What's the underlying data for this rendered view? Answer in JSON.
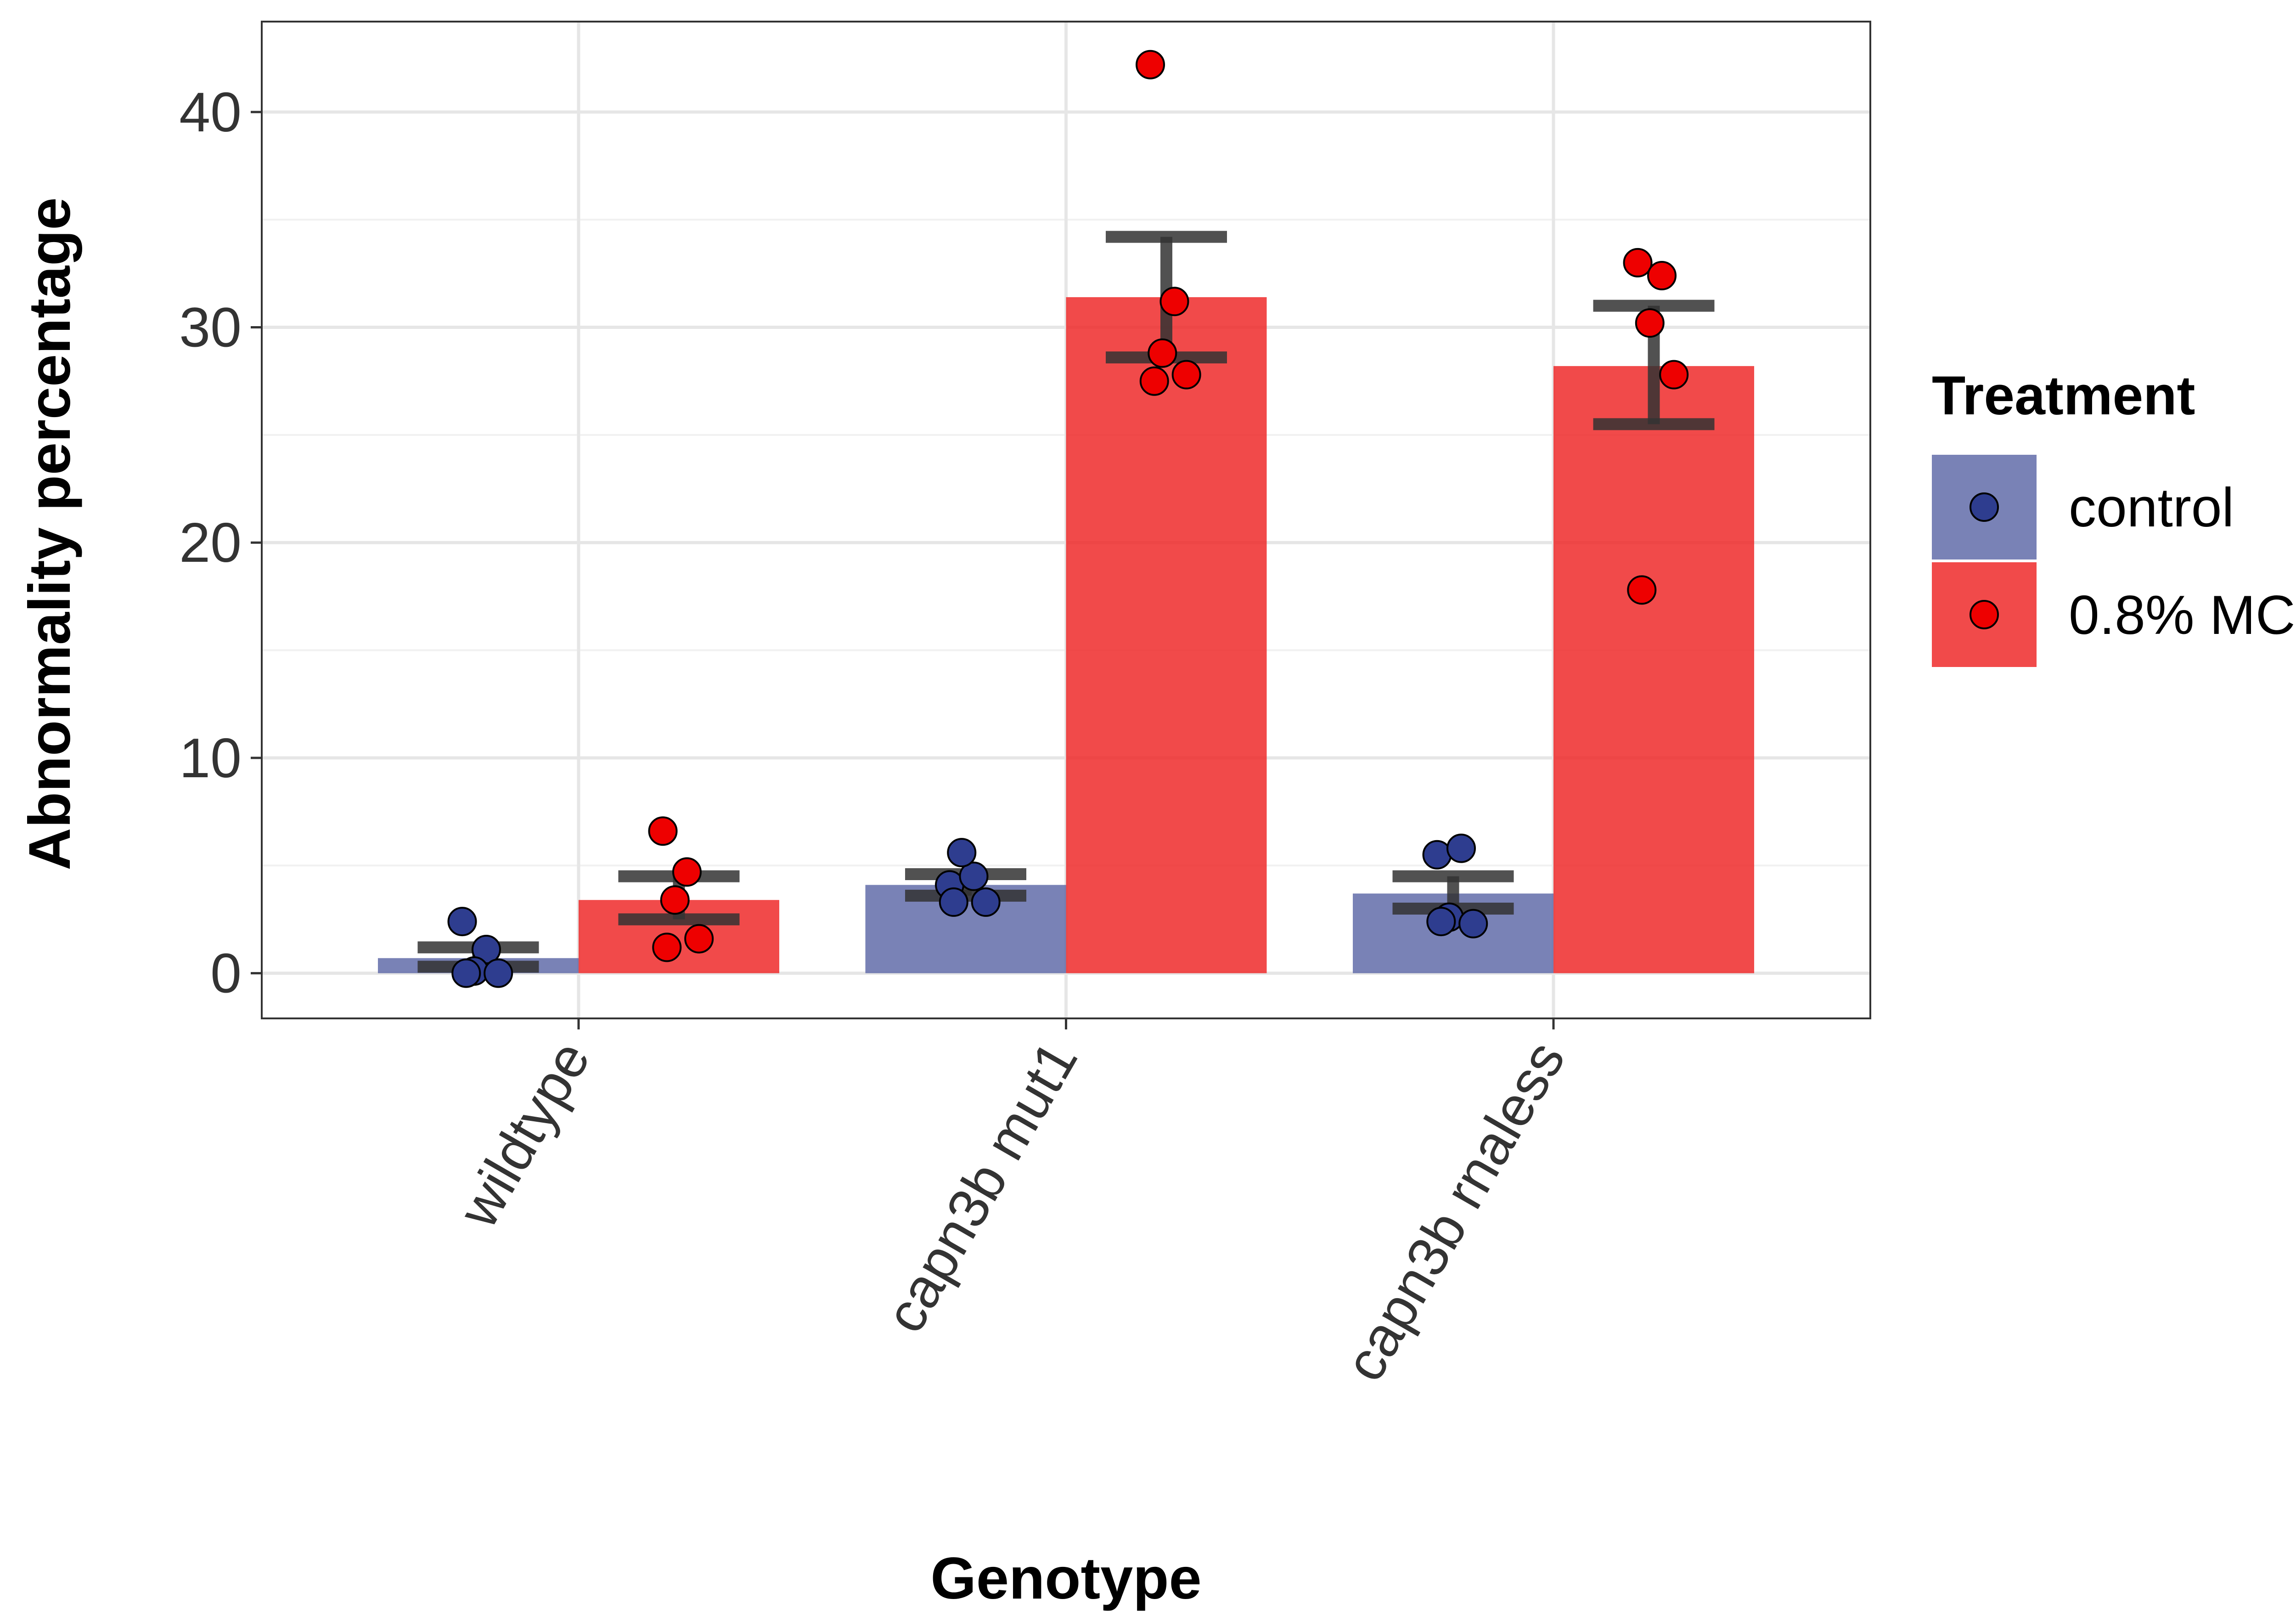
{
  "chart_data": {
    "type": "bar",
    "title": "",
    "xlabel": "Genotype",
    "ylabel": "Abnormality percentage",
    "categories": [
      "wildtype",
      "capn3b mut1",
      "capn3b rnaless"
    ],
    "ylim": [
      -2.1,
      44.2
    ],
    "yticks": [
      0,
      10,
      20,
      30,
      40
    ],
    "grid": true,
    "legend": {
      "title": "Treatment",
      "position": "right"
    },
    "series": [
      {
        "name": "control",
        "color": "#5b67a6",
        "point_color": "#2e3d8f",
        "values": [
          0.7,
          4.1,
          3.7
        ],
        "error_low": [
          0.3,
          3.6,
          3.0
        ],
        "error_high": [
          1.2,
          4.6,
          4.5
        ],
        "points": [
          [
            2.4,
            1.1,
            0.1,
            0.0,
            0.0
          ],
          [
            4.1,
            4.5,
            5.6,
            3.3,
            3.3
          ],
          [
            5.5,
            5.8,
            2.6,
            2.3,
            2.4
          ]
        ]
      },
      {
        "name": "0.8% MC",
        "color": "#ee2222",
        "point_color": "#ee0000",
        "values": [
          3.4,
          31.4,
          28.2
        ],
        "error_low": [
          2.5,
          28.6,
          25.5
        ],
        "error_high": [
          4.5,
          34.2,
          31.0
        ],
        "points": [
          [
            6.6,
            4.7,
            3.4,
            1.6,
            1.2
          ],
          [
            42.2,
            31.2,
            28.8,
            27.8,
            27.5
          ],
          [
            33.0,
            32.4,
            30.2,
            27.8,
            17.8
          ]
        ]
      }
    ]
  }
}
